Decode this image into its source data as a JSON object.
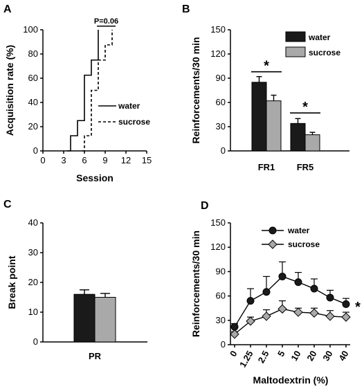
{
  "figure": {
    "panel_letters": [
      "A",
      "B",
      "C",
      "D"
    ]
  },
  "colors": {
    "water": "#1a1a1a",
    "sucrose": "#a9a9a9",
    "axis": "#000000"
  },
  "chart_data": [
    {
      "panel": "A",
      "type": "line",
      "step": true,
      "xlabel": "Session",
      "ylabel": "Acquisition rate (%)",
      "xlim": [
        0,
        15
      ],
      "ylim": [
        0,
        100
      ],
      "xticks": [
        0,
        3,
        6,
        9,
        12,
        15
      ],
      "yticks": [
        0,
        20,
        40,
        60,
        80,
        100
      ],
      "series": [
        {
          "name": "water",
          "style": "solid",
          "x": [
            3.5,
            4.0,
            5.0,
            6.0,
            7.0,
            8.0
          ],
          "y": [
            0,
            12.5,
            25,
            62.5,
            75,
            100
          ]
        },
        {
          "name": "sucrose",
          "style": "dashed",
          "x": [
            5.7,
            6.0,
            7.0,
            8.0,
            9.0,
            10.0
          ],
          "y": [
            0,
            12.5,
            50,
            75,
            87.5,
            100
          ]
        }
      ],
      "annotation": {
        "text": "P=0.06",
        "x_from": 7.8,
        "x_to": 10.5,
        "y": 103
      },
      "legend": {
        "position": "center-right",
        "entries": [
          "water",
          "sucrose"
        ]
      }
    },
    {
      "panel": "B",
      "type": "bar",
      "ylabel": "Reinforcements/30 min",
      "ylim": [
        0,
        150
      ],
      "yticks": [
        0,
        30,
        60,
        90,
        120,
        150
      ],
      "categories": [
        "FR1",
        "FR5"
      ],
      "series": [
        {
          "name": "water",
          "values": [
            85,
            34
          ],
          "errors": [
            7,
            6
          ]
        },
        {
          "name": "sucrose",
          "values": [
            62,
            20
          ],
          "errors": [
            7,
            3
          ]
        }
      ],
      "significance": [
        {
          "category": "FR1",
          "label": "*",
          "y": 98
        },
        {
          "category": "FR5",
          "label": "*",
          "y": 47
        }
      ],
      "legend": {
        "position": "top-right",
        "entries": [
          "water",
          "sucrose"
        ]
      }
    },
    {
      "panel": "C",
      "type": "bar",
      "ylabel": "Break point",
      "ylim": [
        0,
        40
      ],
      "yticks": [
        0,
        10,
        20,
        30,
        40
      ],
      "categories": [
        "PR"
      ],
      "series": [
        {
          "name": "water",
          "values": [
            16
          ],
          "errors": [
            1.5
          ]
        },
        {
          "name": "sucrose",
          "values": [
            15
          ],
          "errors": [
            1.3
          ]
        }
      ]
    },
    {
      "panel": "D",
      "type": "line",
      "xlabel": "Maltodextrin (%)",
      "ylabel": "Reinforcements/30 min",
      "ylim": [
        0,
        150
      ],
      "yticks": [
        0,
        30,
        60,
        90,
        120,
        150
      ],
      "categories": [
        "0",
        "1.25",
        "2.5",
        "5",
        "10",
        "20",
        "30",
        "40"
      ],
      "series": [
        {
          "name": "water",
          "marker": "circle",
          "values": [
            22,
            54,
            65,
            84,
            77,
            69,
            58,
            50
          ],
          "errors": [
            4,
            15,
            19,
            18,
            12,
            12,
            9,
            7
          ]
        },
        {
          "name": "sucrose",
          "marker": "diamond",
          "values": [
            13,
            29,
            35,
            44,
            40,
            39,
            35,
            34
          ],
          "errors": [
            3,
            5,
            8,
            10,
            5,
            6,
            7,
            6
          ]
        }
      ],
      "significance_label": "*",
      "legend": {
        "position": "top-center",
        "entries": [
          "water",
          "sucrose"
        ]
      }
    }
  ]
}
